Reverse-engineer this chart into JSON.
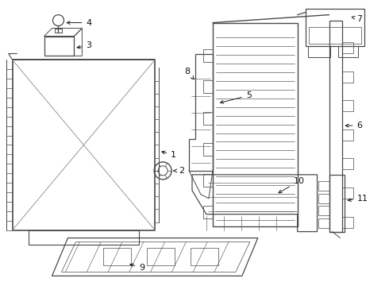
{
  "bg_color": "#ffffff",
  "lc": "#4a4a4a",
  "lw": 0.9,
  "label_fs": 8,
  "label_color": "#111111",
  "fig_w": 4.9,
  "fig_h": 3.6,
  "dpi": 100
}
